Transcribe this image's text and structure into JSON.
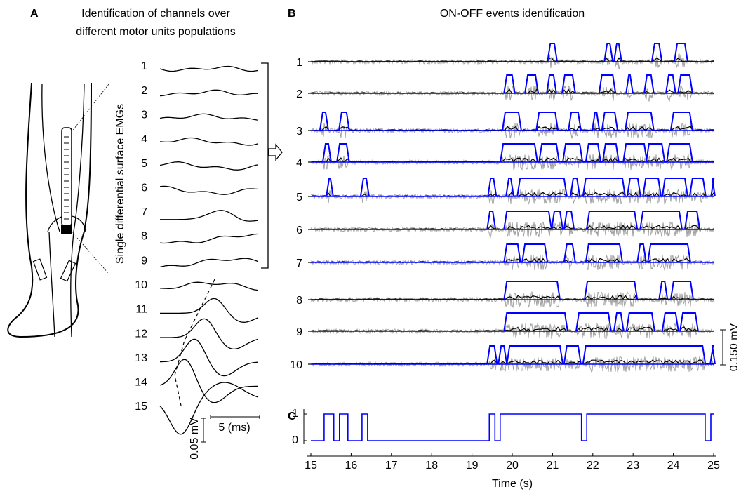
{
  "chart_data": [
    {
      "type": "waveforms",
      "panel_label": "A",
      "title": [
        "Identification of channels over",
        "different motor units populations"
      ],
      "ylabel": "Single differential surface EMGs",
      "channels": [
        "1",
        "2",
        "3",
        "4",
        "5",
        "6",
        "7",
        "8",
        "9",
        "10",
        "11",
        "12",
        "13",
        "14",
        "15"
      ],
      "scale_bar_y": "0.05 mV",
      "scale_bar_x": "5 (ms)"
    },
    {
      "type": "on-off",
      "panel_label": "B",
      "title": "ON-OFF events identification",
      "xlim": [
        15,
        25
      ],
      "color": "#0000ff",
      "scale_bar": "0.150 mV",
      "channels": [
        {
          "name": "1",
          "intervals": [
            [
              20.91,
              21.08
            ],
            [
              22.32,
              22.46
            ],
            [
              22.56,
              22.68
            ],
            [
              23.5,
              23.68
            ],
            [
              24.06,
              24.32
            ]
          ]
        },
        {
          "name": "2",
          "intervals": [
            [
              19.83,
              20.03
            ],
            [
              20.35,
              20.61
            ],
            [
              20.89,
              21.06
            ],
            [
              21.27,
              21.53
            ],
            [
              22.19,
              22.53
            ],
            [
              22.86,
              22.96
            ],
            [
              23.31,
              23.48
            ],
            [
              23.85,
              24.02
            ],
            [
              24.15,
              24.44
            ]
          ]
        },
        {
          "name": "3",
          "intervals": [
            [
              15.26,
              15.4
            ],
            [
              15.73,
              15.92
            ],
            [
              19.79,
              20.19
            ],
            [
              20.63,
              21.1
            ],
            [
              21.43,
              21.67
            ],
            [
              22.02,
              22.13
            ],
            [
              22.26,
              22.58
            ],
            [
              22.84,
              23.48
            ],
            [
              23.97,
              24.44
            ]
          ]
        },
        {
          "name": "4",
          "intervals": [
            [
              15.33,
              15.47
            ],
            [
              15.68,
              15.92
            ],
            [
              19.74,
              20.59
            ],
            [
              20.7,
              21.13
            ],
            [
              21.29,
              21.71
            ],
            [
              21.86,
              22.16
            ],
            [
              22.28,
              22.61
            ],
            [
              22.79,
              23.31
            ],
            [
              23.36,
              23.75
            ],
            [
              23.87,
              24.44
            ]
          ]
        },
        {
          "name": "5",
          "intervals": [
            [
              15.42,
              15.52
            ],
            [
              16.27,
              16.41
            ],
            [
              19.43,
              19.57
            ],
            [
              19.88,
              20.0
            ],
            [
              20.16,
              21.32
            ],
            [
              21.48,
              21.64
            ],
            [
              21.79,
              22.77
            ],
            [
              22.89,
              23.15
            ],
            [
              23.28,
              23.66
            ],
            [
              23.76,
              24.32
            ],
            [
              24.44,
              24.77
            ],
            [
              24.97,
              25
            ]
          ]
        },
        {
          "name": "6",
          "intervals": [
            [
              19.41,
              19.55
            ],
            [
              19.83,
              20.94
            ],
            [
              21.01,
              21.22
            ],
            [
              21.32,
              21.5
            ],
            [
              21.88,
              23.07
            ],
            [
              23.21,
              24.18
            ],
            [
              24.32,
              24.62
            ]
          ]
        },
        {
          "name": "7",
          "intervals": [
            [
              19.83,
              20.17
            ],
            [
              20.28,
              20.84
            ],
            [
              21.32,
              21.53
            ],
            [
              21.86,
              22.7
            ],
            [
              23.14,
              23.29
            ],
            [
              23.4,
              24.39
            ]
          ]
        },
        {
          "name": "8",
          "intervals": [
            [
              19.83,
              21.15
            ],
            [
              21.83,
              23.07
            ],
            [
              23.68,
              23.82
            ],
            [
              23.97,
              24.46
            ]
          ]
        },
        {
          "name": "9",
          "intervals": [
            [
              19.83,
              21.34
            ],
            [
              21.62,
              22.42
            ],
            [
              22.56,
              22.73
            ],
            [
              22.87,
              23.5
            ],
            [
              23.76,
              24.09
            ],
            [
              24.2,
              24.58
            ]
          ]
        },
        {
          "name": "10",
          "intervals": [
            [
              19.41,
              19.59
            ],
            [
              19.69,
              19.83
            ],
            [
              19.9,
              21.22
            ],
            [
              21.32,
              21.67
            ],
            [
              21.79,
              24.76
            ],
            [
              24.95,
              25
            ]
          ]
        }
      ]
    },
    {
      "type": "line",
      "panel_label": "C",
      "color": "#0000ff",
      "xlabel": "Time (s)",
      "x": [
        15,
        15.33,
        15.33,
        15.57,
        15.57,
        15.71,
        15.71,
        15.92,
        15.92,
        16.27,
        16.27,
        16.41,
        16.41,
        19.43,
        19.43,
        19.57,
        19.57,
        19.7,
        19.7,
        21.72,
        21.72,
        21.85,
        21.85,
        24.79,
        24.79,
        24.93,
        24.93,
        25
      ],
      "values": [
        0,
        0,
        1,
        1,
        0,
        0,
        1,
        1,
        0,
        0,
        1,
        1,
        0,
        0,
        1,
        1,
        0,
        0,
        1,
        1,
        0,
        0,
        1,
        1,
        0,
        0,
        1,
        1
      ],
      "xlim": [
        15,
        25
      ],
      "xticks": [
        15,
        16,
        17,
        18,
        19,
        20,
        21,
        22,
        23,
        24,
        25
      ],
      "ylim": [
        0,
        1
      ],
      "yticks": [
        0,
        1
      ]
    }
  ]
}
